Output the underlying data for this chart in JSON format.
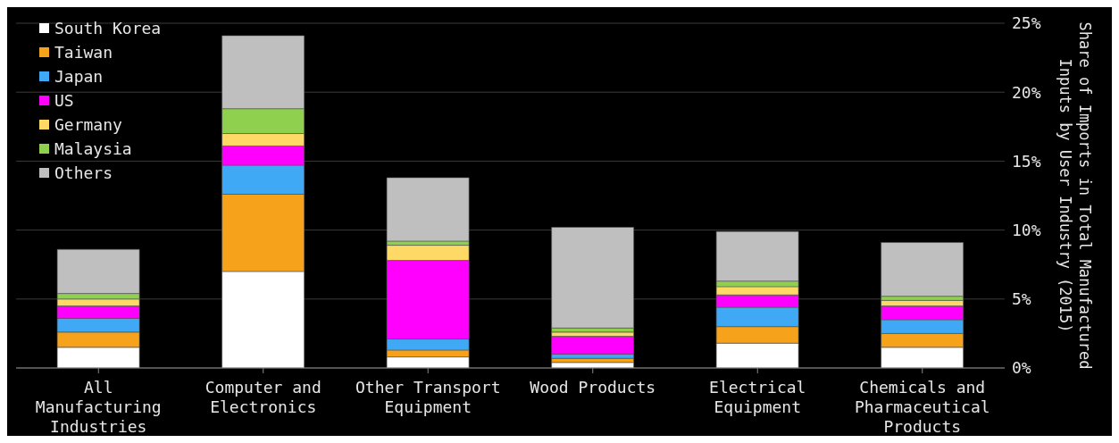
{
  "chart_data": {
    "type": "bar",
    "stacked": true,
    "ylabel": "Share of Imports in Total Manufactured Inputs by User Industry (2015)",
    "categories": [
      "All Manufacturing Industries",
      "Computer and Electronics",
      "Other Transport Equipment",
      "Wood Products",
      "Electrical Equipment",
      "Chemicals and Pharmaceutical Products"
    ],
    "series": [
      {
        "name": "South Korea",
        "color": "#ffffff",
        "values": [
          1.5,
          7.0,
          0.8,
          0.4,
          1.8,
          1.5
        ]
      },
      {
        "name": "Taiwan",
        "color": "#f7a21b",
        "values": [
          1.1,
          5.6,
          0.5,
          0.3,
          1.2,
          1.0
        ]
      },
      {
        "name": "Japan",
        "color": "#3fa9f5",
        "values": [
          1.0,
          2.1,
          0.8,
          0.3,
          1.4,
          1.0
        ]
      },
      {
        "name": "US",
        "color": "#ff00ff",
        "values": [
          0.9,
          1.4,
          5.7,
          1.3,
          0.9,
          1.0
        ]
      },
      {
        "name": "Germany",
        "color": "#ffd966",
        "values": [
          0.5,
          0.9,
          1.1,
          0.3,
          0.6,
          0.4
        ]
      },
      {
        "name": "Malaysia",
        "color": "#8fd14f",
        "values": [
          0.4,
          1.8,
          0.3,
          0.3,
          0.4,
          0.3
        ]
      },
      {
        "name": "Others",
        "color": "#bfbfbf",
        "values": [
          3.2,
          5.3,
          4.6,
          7.3,
          3.6,
          3.9
        ]
      }
    ],
    "ylim": [
      0,
      25
    ],
    "yticks": [
      {
        "value": 0,
        "label": "0%"
      },
      {
        "value": 5,
        "label": "5%"
      },
      {
        "value": 10,
        "label": "10%"
      },
      {
        "value": 15,
        "label": "15%"
      },
      {
        "value": 20,
        "label": "20%"
      },
      {
        "value": 25,
        "label": "25%"
      }
    ],
    "grid": "y",
    "legend": "top left"
  }
}
